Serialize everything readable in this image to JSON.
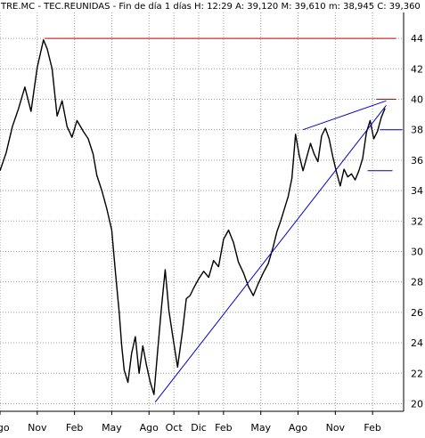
{
  "header": {
    "symbol": "TRE.MC",
    "name": "TEC.REUNIDAS",
    "period": "Fin de día 1 días",
    "time": "H: 12:29",
    "open": "A: 39,120",
    "high": "M: 39,610",
    "low": "m: 38,945",
    "close": "C: 39,360",
    "text": "TRE.MC - TEC.REUNIDAS - Fin de día 1 días  H: 12:29  A: 39,120  M: 39,610  m: 38,945  C: 39,360"
  },
  "colors": {
    "background": "#ffffff",
    "grid": "#9a9a9a",
    "price": "#000000",
    "trendline": "#0000cc",
    "resistance": "#cc0000"
  },
  "chart_data": {
    "type": "line",
    "title": "TRE.MC - TEC.REUNIDAS",
    "xlabel": "",
    "ylabel": "",
    "ylim": [
      19.5,
      45.7
    ],
    "yticks": [
      20,
      22,
      24,
      26,
      28,
      30,
      32,
      34,
      36,
      38,
      40,
      42,
      44
    ],
    "grid": true,
    "xticks": [
      "Ago",
      "Nov",
      "Feb",
      "May",
      "Ago",
      "Oct",
      "Dic",
      "Feb",
      "May",
      "Ago",
      "Nov",
      "Feb"
    ],
    "xtick_month_index": [
      0,
      3,
      6,
      9,
      12,
      14,
      16,
      18,
      21,
      24,
      27,
      30
    ],
    "xlim_months": [
      0,
      32.5
    ],
    "series": [
      {
        "name": "",
        "kind": "price",
        "x": [
          0,
          0.5,
          1,
          1.5,
          2,
          2.5,
          3,
          3.5,
          3.8,
          4.2,
          4.6,
          5,
          5.4,
          5.8,
          6.2,
          6.7,
          7.1,
          7.5,
          7.8,
          8.2,
          8.6,
          9,
          9.3,
          9.6,
          9.8,
          10,
          10.3,
          10.6,
          10.9,
          11.2,
          11.5,
          11.8,
          12.1,
          12.4,
          12.7,
          13,
          13.3,
          13.6,
          13.9,
          14.3,
          14.7,
          15,
          15.3,
          15.6,
          16,
          16.4,
          16.8,
          17.2,
          17.6,
          18,
          18.4,
          18.8,
          19.2,
          19.6,
          20,
          20.4,
          20.8,
          21.2,
          21.6,
          22,
          22.3,
          22.6,
          22.9,
          23.2,
          23.5,
          23.8,
          24.1,
          24.4,
          24.7,
          25,
          25.3,
          25.6,
          25.9,
          26.2,
          26.5,
          26.8,
          27.1,
          27.4,
          27.7,
          28,
          28.3,
          28.6,
          28.9,
          29.2,
          29.5,
          29.8,
          30.1,
          30.4,
          30.7,
          31
        ],
        "values": [
          35.3,
          36.5,
          38.2,
          39.4,
          40.8,
          39.2,
          42.1,
          43.9,
          43.3,
          42.0,
          38.9,
          39.9,
          38.2,
          37.5,
          38.6,
          37.9,
          37.4,
          36.4,
          35.0,
          34.0,
          32.8,
          31.4,
          28.6,
          26.0,
          23.8,
          22.2,
          21.4,
          23.3,
          24.4,
          22.0,
          23.8,
          22.5,
          21.4,
          20.6,
          23.5,
          26.3,
          28.8,
          26.1,
          24.5,
          22.4,
          24.8,
          26.9,
          27.1,
          27.6,
          28.2,
          28.7,
          28.3,
          29.4,
          29.0,
          30.8,
          31.4,
          30.6,
          29.3,
          28.6,
          27.7,
          27.1,
          27.9,
          28.6,
          29.2,
          30.3,
          31.3,
          32.0,
          32.8,
          33.6,
          34.8,
          37.7,
          36.3,
          35.3,
          36.2,
          37.1,
          36.4,
          35.9,
          37.6,
          38.1,
          37.4,
          36.2,
          35.2,
          34.3,
          35.4,
          34.9,
          35.1,
          34.7,
          35.3,
          36.1,
          37.8,
          38.6,
          37.4,
          37.9,
          38.8,
          39.4
        ]
      },
      {
        "name": "",
        "kind": "trendline",
        "x": [
          12.5,
          31.1
        ],
        "values": [
          20.1,
          39.6
        ]
      },
      {
        "name": "",
        "kind": "trendline",
        "x": [
          24.4,
          31.1
        ],
        "values": [
          38.0,
          39.9
        ]
      },
      {
        "name": "",
        "kind": "trendline",
        "x": [
          29.6,
          31.6
        ],
        "values": [
          35.3,
          35.3
        ]
      },
      {
        "name": "",
        "kind": "trendline",
        "x": [
          30.6,
          32.4
        ],
        "values": [
          38.0,
          38.0
        ]
      },
      {
        "name": "",
        "kind": "resistance",
        "x": [
          3.6,
          31.9
        ],
        "values": [
          44.0,
          44.0
        ]
      },
      {
        "name": "",
        "kind": "resistance",
        "x": [
          30.3,
          31.9
        ],
        "values": [
          40.0,
          40.0
        ]
      }
    ]
  }
}
